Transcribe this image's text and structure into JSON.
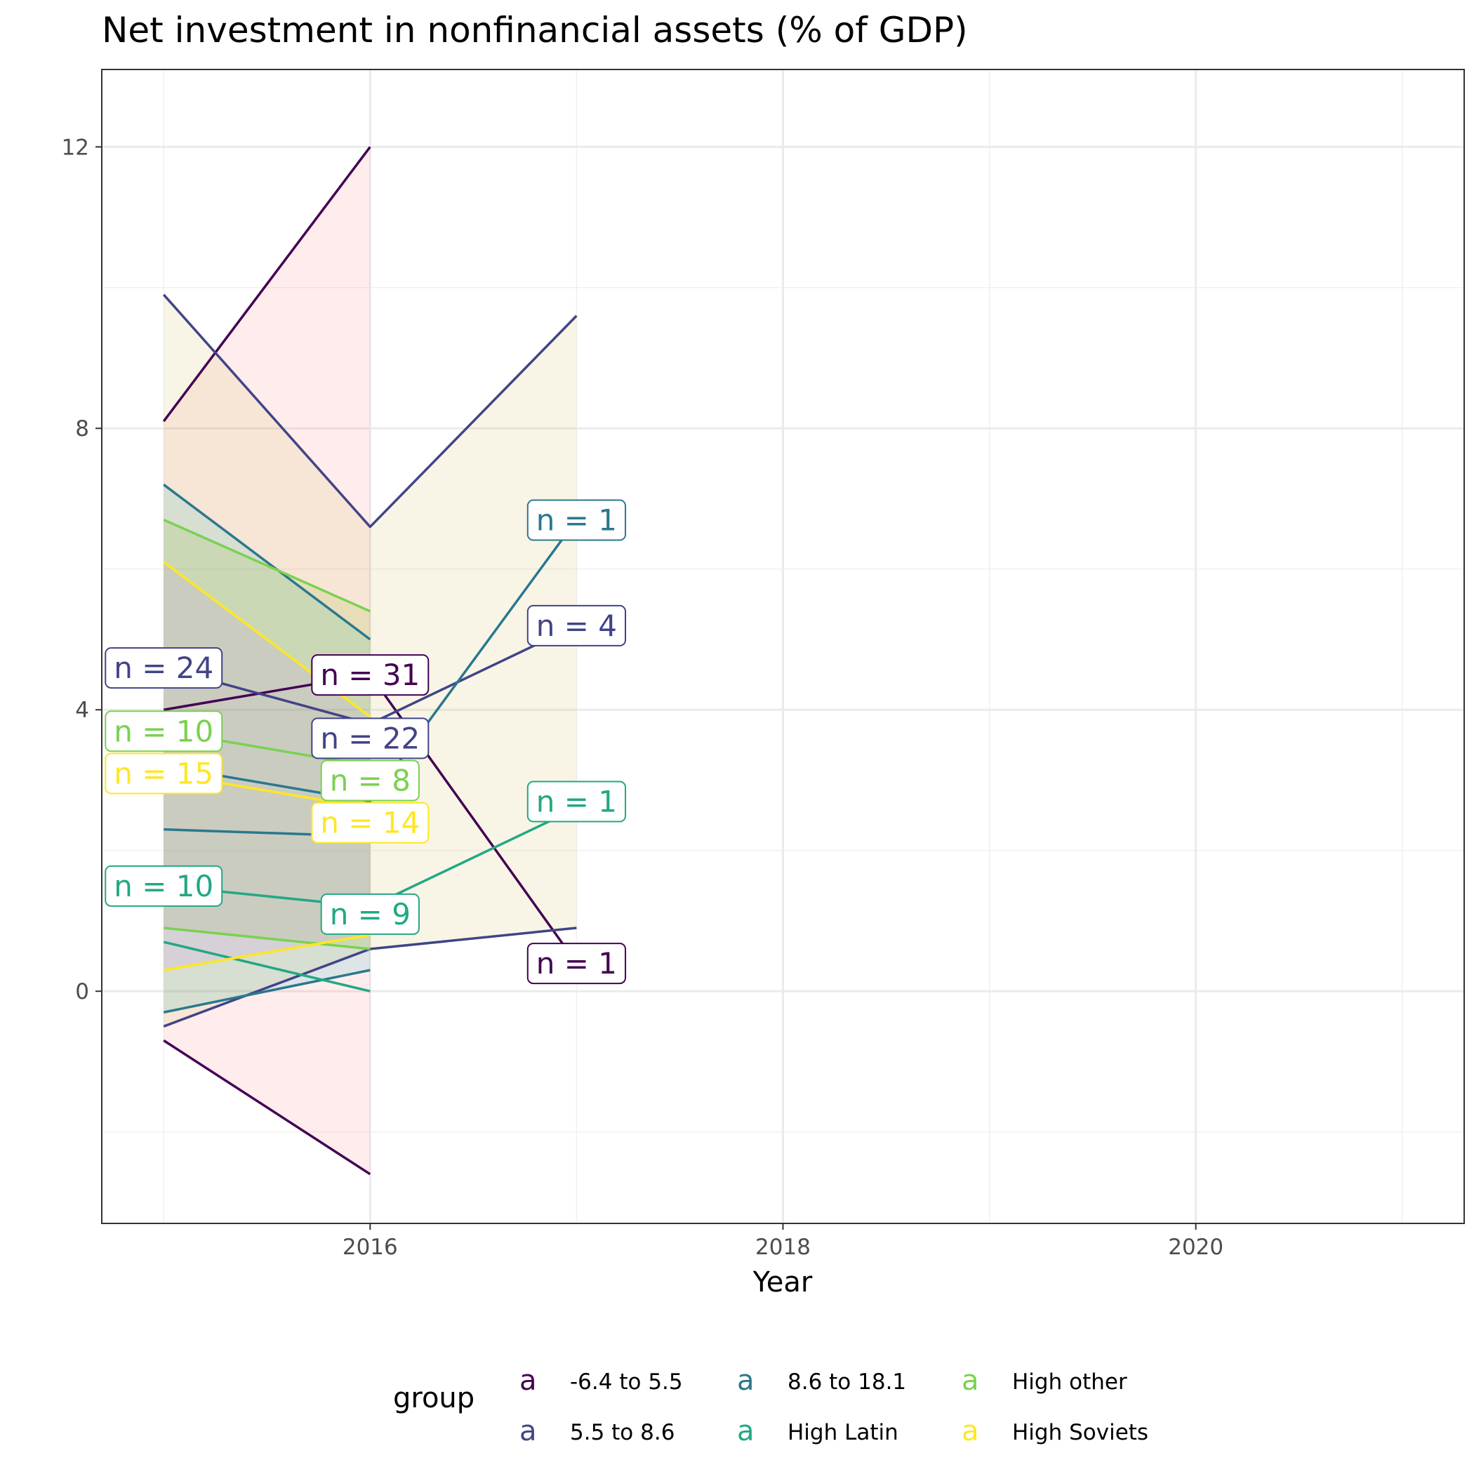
{
  "chart_data": {
    "type": "line",
    "title": "Net investment in nonfinancial assets (% of GDP)",
    "xlabel": "Year",
    "ylabel": "",
    "xlim": [
      2014.7,
      2021.3
    ],
    "ylim": [
      -3.3,
      13.1
    ],
    "x_ticks": [
      2016,
      2018,
      2020
    ],
    "y_ticks": [
      0,
      4,
      8,
      12
    ],
    "x_grid_major": [
      2016,
      2018,
      2020
    ],
    "x_grid_minor": [
      2015,
      2017,
      2019,
      2021
    ],
    "y_grid_minor": [
      -2,
      2,
      6,
      10
    ],
    "grid": true,
    "legend": {
      "title": "group",
      "position": "bottom",
      "key_glyph": "a",
      "items": [
        {
          "label": "-6.4 to 5.5",
          "color": "#440154"
        },
        {
          "label": "5.5 to 8.6",
          "color": "#414487"
        },
        {
          "label": "8.6 to 18.1",
          "color": "#2a788e"
        },
        {
          "label": "High Latin",
          "color": "#22a884"
        },
        {
          "label": "High other",
          "color": "#7ad151"
        },
        {
          "label": "High Soviets",
          "color": "#fde725"
        }
      ]
    },
    "ribbons": [
      {
        "name": "-6.4 to 5.5",
        "color": "#f8766d",
        "x": [
          2015,
          2016
        ],
        "upper": [
          8.1,
          12
        ],
        "lower": [
          -0.7,
          -2.6
        ]
      },
      {
        "name": "5.5 to 8.6",
        "color": "#c9b13a",
        "x": [
          2015,
          2016,
          2017
        ],
        "upper": [
          9.9,
          6.6,
          9.6
        ],
        "lower": [
          -0.5,
          0.6,
          0.9
        ]
      },
      {
        "name": "8.6 to 18.1",
        "color": "#00b5c1",
        "x": [
          2015,
          2016
        ],
        "upper": [
          7.2,
          5.0
        ],
        "lower": [
          -0.3,
          0.3
        ]
      },
      {
        "name": "High other",
        "color": "#7cae00",
        "x": [
          2015,
          2016
        ],
        "upper": [
          6.7,
          5.4
        ],
        "lower": [
          0.9,
          0.6
        ]
      },
      {
        "name": "High Soviets",
        "color": "#c77cff",
        "x": [
          2015,
          2016
        ],
        "upper": [
          6.1,
          3.9
        ],
        "lower": [
          0.3,
          0.8
        ]
      }
    ],
    "series": [
      {
        "name": "-6.4 to 5.5",
        "color": "#440154",
        "mean": {
          "x": [
            2015,
            2016,
            2017
          ],
          "y": [
            4.0,
            4.5,
            0.4
          ]
        },
        "upper": {
          "x": [
            2015,
            2016
          ],
          "y": [
            8.1,
            12.0
          ]
        },
        "lower": {
          "x": [
            2015,
            2016
          ],
          "y": [
            -0.7,
            -2.6
          ]
        }
      },
      {
        "name": "5.5 to 8.6",
        "color": "#414487",
        "mean": {
          "x": [
            2015,
            2016,
            2017
          ],
          "y": [
            4.6,
            3.8,
            5.2
          ]
        },
        "upper": {
          "x": [
            2015,
            2016,
            2017
          ],
          "y": [
            9.9,
            6.6,
            9.6
          ]
        },
        "lower": {
          "x": [
            2015,
            2016,
            2017
          ],
          "y": [
            -0.5,
            0.6,
            0.9
          ]
        }
      },
      {
        "name": "8.6 to 18.1",
        "color": "#2a788e",
        "mean": {
          "x": [
            2015,
            2016,
            2017
          ],
          "y": [
            3.2,
            2.7,
            6.7
          ]
        },
        "upper": {
          "x": [
            2015,
            2016
          ],
          "y": [
            7.2,
            5.0
          ]
        },
        "lower": {
          "x": [
            2015,
            2016
          ],
          "y": [
            -0.3,
            0.3
          ]
        },
        "extra": {
          "x": [
            2015,
            2016
          ],
          "y": [
            2.3,
            2.2
          ]
        }
      },
      {
        "name": "High Latin",
        "color": "#22a884",
        "mean": {
          "x": [
            2015,
            2016,
            2017
          ],
          "y": [
            1.5,
            1.2,
            2.6
          ]
        },
        "upper": {
          "x": [
            2015,
            2016
          ],
          "y": [
            0.7,
            0.0
          ]
        }
      },
      {
        "name": "High other",
        "color": "#7ad151",
        "mean": {
          "x": [
            2015,
            2016
          ],
          "y": [
            3.7,
            3.2
          ]
        },
        "upper": {
          "x": [
            2015,
            2016
          ],
          "y": [
            6.7,
            5.4
          ]
        },
        "lower": {
          "x": [
            2015,
            2016
          ],
          "y": [
            0.9,
            0.6
          ]
        }
      },
      {
        "name": "High Soviets",
        "color": "#fde725",
        "mean": {
          "x": [
            2015,
            2016
          ],
          "y": [
            3.1,
            2.6
          ]
        },
        "upper": {
          "x": [
            2015,
            2016
          ],
          "y": [
            6.1,
            3.9
          ]
        },
        "lower": {
          "x": [
            2015,
            2016
          ],
          "y": [
            0.3,
            0.8
          ]
        }
      }
    ],
    "annotations": [
      {
        "text": "n = 24",
        "x": 2015,
        "y": 4.6,
        "color": "#414487"
      },
      {
        "text": "n = 10",
        "x": 2015,
        "y": 3.7,
        "color": "#7ad151"
      },
      {
        "text": "n = 15",
        "x": 2015,
        "y": 3.1,
        "color": "#fde725"
      },
      {
        "text": "n = 10",
        "x": 2015,
        "y": 1.5,
        "color": "#22a884"
      },
      {
        "text": "n = 31",
        "x": 2016,
        "y": 4.5,
        "color": "#440154"
      },
      {
        "text": "n = 22",
        "x": 2016,
        "y": 3.6,
        "color": "#414487"
      },
      {
        "text": "n = 8",
        "x": 2016,
        "y": 3.0,
        "color": "#7ad151"
      },
      {
        "text": "n = 14",
        "x": 2016,
        "y": 2.4,
        "color": "#fde725"
      },
      {
        "text": "n = 9",
        "x": 2016,
        "y": 1.1,
        "color": "#22a884"
      },
      {
        "text": "n = 1",
        "x": 2017,
        "y": 6.7,
        "color": "#2a788e"
      },
      {
        "text": "n = 4",
        "x": 2017,
        "y": 5.2,
        "color": "#414487"
      },
      {
        "text": "n = 1",
        "x": 2017,
        "y": 2.7,
        "color": "#22a884"
      },
      {
        "text": "n = 1",
        "x": 2017,
        "y": 0.4,
        "color": "#440154"
      }
    ]
  }
}
